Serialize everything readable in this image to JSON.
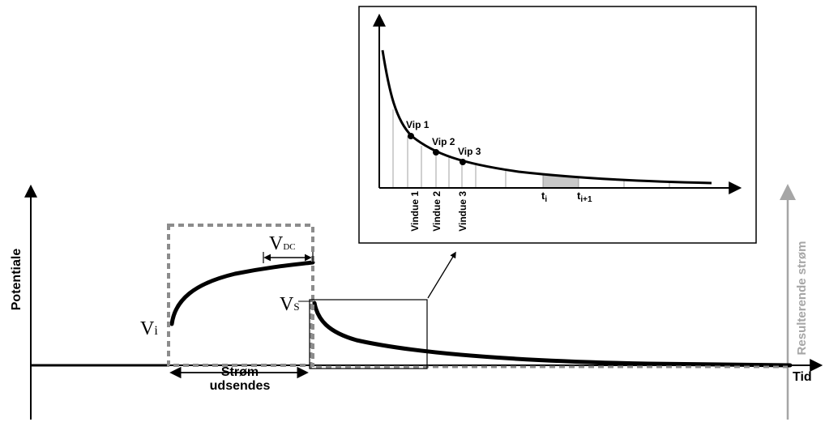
{
  "main_axes": {
    "y_label": "Potentiale",
    "x_label": "Tid",
    "right_y_label": "Resulterende strøm"
  },
  "annotations": {
    "v_i": {
      "main": "V",
      "sub": "i"
    },
    "v_dc": {
      "main": "V",
      "sub": "DC"
    },
    "v_s": {
      "main": "V",
      "sub": "S"
    },
    "current_line1": "Strøm",
    "current_line2": "udsendes"
  },
  "inset": {
    "vip_labels": [
      "Vip 1",
      "Vip 2",
      "Vip 3"
    ],
    "window_labels": [
      "Vindue 1",
      "Vindue 2",
      "Vindue 3"
    ],
    "t_i": {
      "main": "t",
      "sub": "i"
    },
    "t_i1": {
      "main": "t",
      "sub": "i+1"
    }
  },
  "colors": {
    "line": "#000000",
    "dashed_box": "#8c8c8c",
    "right_axis": "#a6a6a6",
    "shaded_window": "#c8c8c8",
    "thin_line": "#8a8a8a"
  }
}
